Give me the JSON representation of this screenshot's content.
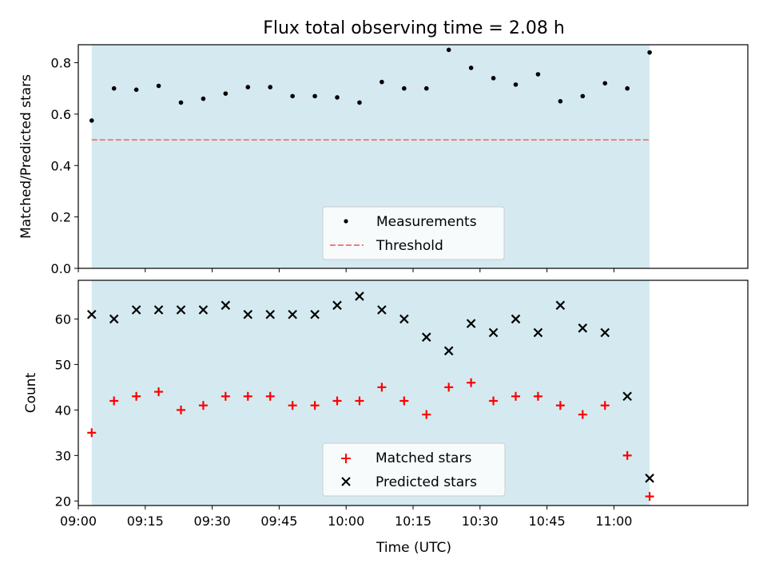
{
  "figure_title": "Flux total observing time = 2.08 h",
  "colors": {
    "band": "#d4eaf0",
    "band_edge": "#b8dde6",
    "threshold": "#f07f7f",
    "matched": "#ff0000",
    "predicted": "#000000",
    "measurement": "#000000"
  },
  "chart_data": [
    {
      "type": "scatter",
      "title": "Flux total observing time = 2.08 h",
      "ylabel": "Matched/Predicted stars",
      "xlabel": "",
      "ylim": [
        0,
        0.87
      ],
      "yticks": [
        0,
        0.2,
        0.4,
        0.6,
        0.8
      ],
      "ytick_labels": [
        "0.0",
        "0.2",
        "0.4",
        "0.6",
        "0.8"
      ],
      "shaded_span": [
        "09:03",
        "11:08"
      ],
      "series": [
        {
          "name": "Measurements",
          "marker": "dot",
          "x": [
            "09:03",
            "09:08",
            "09:13",
            "09:18",
            "09:23",
            "09:28",
            "09:33",
            "09:38",
            "09:43",
            "09:48",
            "09:53",
            "09:58",
            "10:03",
            "10:08",
            "10:13",
            "10:18",
            "10:23",
            "10:28",
            "10:33",
            "10:38",
            "10:43",
            "10:48",
            "10:53",
            "10:58",
            "11:03",
            "11:08"
          ],
          "y": [
            0.575,
            0.7,
            0.695,
            0.71,
            0.645,
            0.66,
            0.68,
            0.705,
            0.705,
            0.67,
            0.67,
            0.665,
            0.645,
            0.725,
            0.7,
            0.7,
            0.85,
            0.78,
            0.74,
            0.715,
            0.755,
            0.65,
            0.67,
            0.72,
            0.7,
            0.84
          ]
        },
        {
          "name": "Threshold",
          "style": "dashed",
          "x": [
            "09:03",
            "11:08"
          ],
          "y": [
            0.5,
            0.5
          ]
        }
      ],
      "legend": {
        "placement": "lower center",
        "entries": [
          "Measurements",
          "Threshold"
        ]
      }
    },
    {
      "type": "scatter",
      "xlabel": "Time (UTC)",
      "ylabel": "Count",
      "ylim": [
        19,
        68.5
      ],
      "yticks": [
        20,
        30,
        40,
        50,
        60
      ],
      "ytick_labels": [
        "20",
        "30",
        "40",
        "50",
        "60"
      ],
      "xlim": [
        "09:00",
        "11:30"
      ],
      "xticks": [
        "09:00",
        "09:15",
        "09:30",
        "09:45",
        "10:00",
        "10:15",
        "10:30",
        "10:45",
        "11:00"
      ],
      "xtick_labels": [
        "09:00",
        "09:15",
        "09:30",
        "09:45",
        "10:00",
        "10:15",
        "10:30",
        "10:45",
        "11:00"
      ],
      "shaded_span": [
        "09:03",
        "11:08"
      ],
      "series": [
        {
          "name": "Matched stars",
          "marker": "plus",
          "x": [
            "09:03",
            "09:08",
            "09:13",
            "09:18",
            "09:23",
            "09:28",
            "09:33",
            "09:38",
            "09:43",
            "09:48",
            "09:53",
            "09:58",
            "10:03",
            "10:08",
            "10:13",
            "10:18",
            "10:23",
            "10:28",
            "10:33",
            "10:38",
            "10:43",
            "10:48",
            "10:53",
            "10:58",
            "11:03",
            "11:08"
          ],
          "y": [
            35,
            42,
            43,
            44,
            40,
            41,
            43,
            43,
            43,
            41,
            41,
            42,
            42,
            45,
            42,
            39,
            45,
            46,
            42,
            43,
            43,
            41,
            39,
            41,
            30,
            21
          ]
        },
        {
          "name": "Predicted stars",
          "marker": "x",
          "x": [
            "09:03",
            "09:08",
            "09:13",
            "09:18",
            "09:23",
            "09:28",
            "09:33",
            "09:38",
            "09:43",
            "09:48",
            "09:53",
            "09:58",
            "10:03",
            "10:08",
            "10:13",
            "10:18",
            "10:23",
            "10:28",
            "10:33",
            "10:38",
            "10:43",
            "10:48",
            "10:53",
            "10:58",
            "11:03",
            "11:08"
          ],
          "y": [
            61,
            60,
            62,
            62,
            62,
            62,
            63,
            61,
            61,
            61,
            61,
            63,
            65,
            62,
            60,
            56,
            53,
            59,
            57,
            60,
            57,
            63,
            58,
            57,
            43,
            25
          ]
        }
      ],
      "legend": {
        "placement": "lower center",
        "entries": [
          "Matched stars",
          "Predicted stars"
        ]
      }
    }
  ]
}
